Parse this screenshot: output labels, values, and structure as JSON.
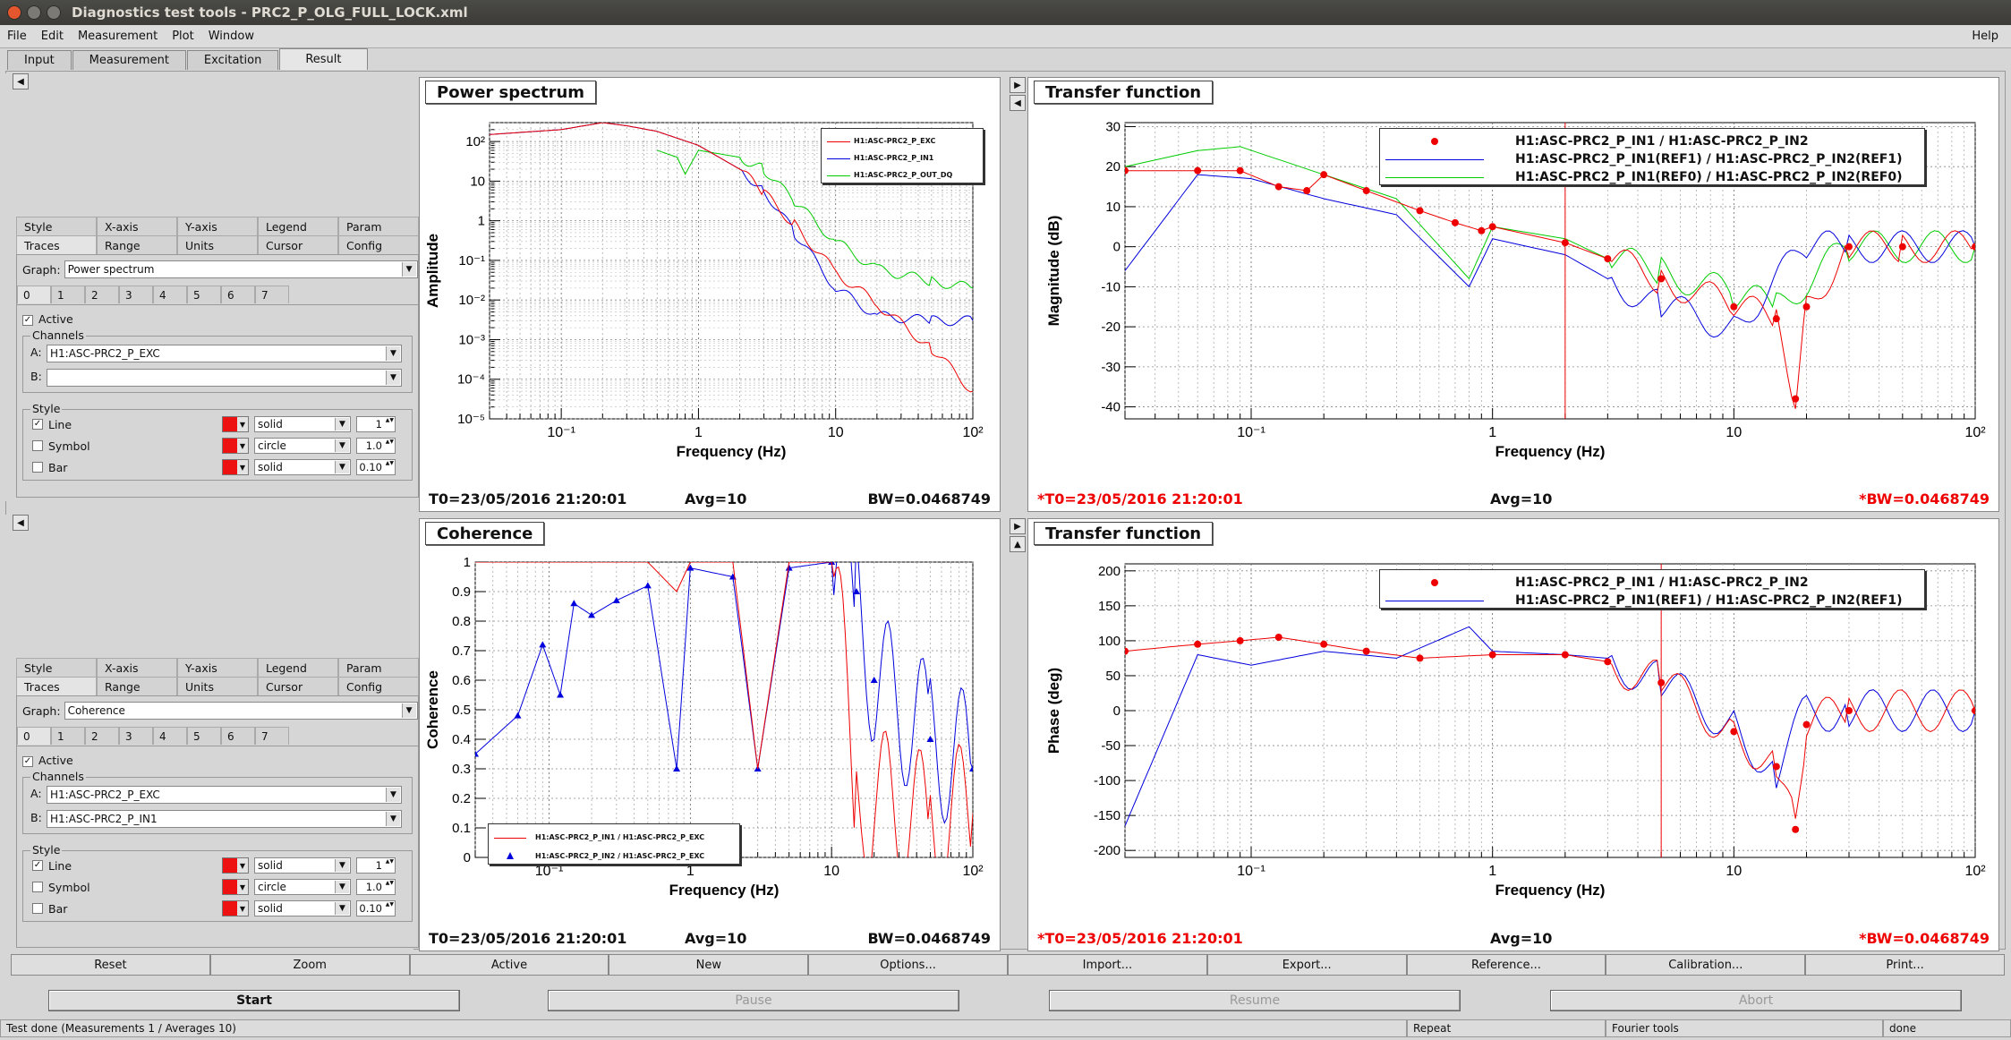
{
  "window": {
    "title": "Diagnostics test tools - PRC2_P_OLG_FULL_LOCK.xml"
  },
  "menu": {
    "items": [
      "File",
      "Edit",
      "Measurement",
      "Plot",
      "Window"
    ],
    "help": "Help"
  },
  "main_tabs": [
    "Input",
    "Measurement",
    "Excitation",
    "Result"
  ],
  "left_panels": [
    {
      "option_tabs_row1": [
        "Style",
        "X-axis",
        "Y-axis",
        "Legend",
        "Param"
      ],
      "option_tabs_row2": [
        "Traces",
        "Range",
        "Units",
        "Cursor",
        "Config"
      ],
      "graph_label": "Graph:",
      "graph_value": "Power spectrum",
      "trace_numbers": [
        "0",
        "1",
        "2",
        "3",
        "4",
        "5",
        "6",
        "7"
      ],
      "active_label": "Active",
      "channels_label": "Channels",
      "a_label": "A:",
      "a_value": "H1:ASC-PRC2_P_EXC",
      "b_label": "B:",
      "b_value": "",
      "style_label": "Style",
      "line_label": "Line",
      "line_style": "solid",
      "line_width": "1",
      "symbol_label": "Symbol",
      "symbol_style": "circle",
      "symbol_size": "1.0",
      "bar_label": "Bar",
      "bar_style": "solid",
      "bar_width": "0.10"
    },
    {
      "option_tabs_row1": [
        "Style",
        "X-axis",
        "Y-axis",
        "Legend",
        "Param"
      ],
      "option_tabs_row2": [
        "Traces",
        "Range",
        "Units",
        "Cursor",
        "Config"
      ],
      "graph_label": "Graph:",
      "graph_value": "Coherence",
      "trace_numbers": [
        "0",
        "1",
        "2",
        "3",
        "4",
        "5",
        "6",
        "7"
      ],
      "active_label": "Active",
      "channels_label": "Channels",
      "a_label": "A:",
      "a_value": "H1:ASC-PRC2_P_EXC",
      "b_label": "B:",
      "b_value": "H1:ASC-PRC2_P_IN1",
      "style_label": "Style",
      "line_label": "Line",
      "line_style": "solid",
      "line_width": "1",
      "symbol_label": "Symbol",
      "symbol_style": "circle",
      "symbol_size": "1.0",
      "bar_label": "Bar",
      "bar_style": "solid",
      "bar_width": "0.10"
    }
  ],
  "plots": {
    "power": {
      "title": "Power spectrum",
      "ylabel": "Amplitude",
      "xlabel": "Frequency (Hz)",
      "footer_t0": "T0=23/05/2016 21:20:01",
      "footer_avg": "Avg=10",
      "footer_bw": "BW=0.0468749",
      "legend": [
        "H1:ASC-PRC2_P_EXC",
        "H1:ASC-PRC2_P_IN1",
        "H1:ASC-PRC2_P_OUT_DQ"
      ]
    },
    "tf_mag": {
      "title": "Transfer function",
      "ylabel": "Magnitude (dB)",
      "xlabel": "Frequency (Hz)",
      "footer_t0": "*T0=23/05/2016 21:20:01",
      "footer_avg": "Avg=10",
      "footer_bw": "*BW=0.0468749",
      "legend": [
        "H1:ASC-PRC2_P_IN1 / H1:ASC-PRC2_P_IN2",
        "H1:ASC-PRC2_P_IN1(REF1) / H1:ASC-PRC2_P_IN2(REF1)",
        "H1:ASC-PRC2_P_IN1(REF0) / H1:ASC-PRC2_P_IN2(REF0)"
      ]
    },
    "coherence": {
      "title": "Coherence",
      "ylabel": "Coherence",
      "xlabel": "Frequency (Hz)",
      "footer_t0": "T0=23/05/2016 21:20:01",
      "footer_avg": "Avg=10",
      "footer_bw": "BW=0.0468749",
      "legend": [
        "H1:ASC-PRC2_P_IN1 / H1:ASC-PRC2_P_EXC",
        "H1:ASC-PRC2_P_IN2 / H1:ASC-PRC2_P_EXC"
      ]
    },
    "tf_phase": {
      "title": "Transfer function",
      "ylabel": "Phase (deg)",
      "xlabel": "Frequency (Hz)",
      "footer_t0": "*T0=23/05/2016 21:20:01",
      "footer_avg": "Avg=10",
      "footer_bw": "*BW=0.0468749",
      "legend": [
        "H1:ASC-PRC2_P_IN1 / H1:ASC-PRC2_P_IN2",
        "H1:ASC-PRC2_P_IN1(REF1) / H1:ASC-PRC2_P_IN2(REF1)"
      ]
    }
  },
  "chart_data": [
    {
      "type": "line",
      "title": "Power spectrum",
      "xlabel": "Frequency (Hz)",
      "ylabel": "Amplitude",
      "xscale": "log",
      "yscale": "log",
      "xlim": [
        0.03,
        100
      ],
      "ylim": [
        1e-05,
        300
      ],
      "x_tick_labels": [
        "10^-1",
        "1",
        "10",
        "10^2"
      ],
      "y_tick_labels": [
        "10^2",
        "10",
        "1",
        "10^-1",
        "10^-2",
        "10^-3",
        "10^-4",
        "10^-5"
      ],
      "grid": true,
      "legend_position": "top-right",
      "series": [
        {
          "name": "H1:ASC-PRC2_P_EXC",
          "color": "#ee0000",
          "x": [
            0.03,
            0.1,
            0.2,
            0.3,
            0.5,
            1,
            2,
            3,
            5,
            10,
            20,
            50,
            100
          ],
          "y": [
            150,
            200,
            300,
            250,
            180,
            80,
            20,
            5,
            0.8,
            0.05,
            0.008,
            0.0006,
            5e-05
          ]
        },
        {
          "name": "H1:ASC-PRC2_P_IN1",
          "color": "#0000dd",
          "x": [
            0.03,
            0.1,
            0.2,
            0.3,
            0.5,
            1,
            2,
            3,
            5,
            10,
            20,
            50,
            100
          ],
          "y": [
            150,
            200,
            300,
            250,
            180,
            80,
            20,
            6,
            0.5,
            0.02,
            0.004,
            0.003,
            0.003
          ]
        },
        {
          "name": "H1:ASC-PRC2_P_OUT_DQ",
          "color": "#00cc00",
          "x": [
            0.5,
            0.7,
            0.8,
            1,
            2,
            3,
            5,
            10,
            20,
            50,
            100
          ],
          "y": [
            60,
            40,
            15,
            60,
            40,
            20,
            3,
            0.3,
            0.06,
            0.03,
            0.02
          ]
        }
      ]
    },
    {
      "type": "line",
      "title": "Transfer function",
      "xlabel": "Frequency (Hz)",
      "ylabel": "Magnitude (dB)",
      "xscale": "log",
      "xlim": [
        0.03,
        100
      ],
      "ylim": [
        -43,
        31
      ],
      "x_tick_labels": [
        "10^-1",
        "1",
        "10",
        "10^2"
      ],
      "y_tick_labels": [
        "30",
        "20",
        "10",
        "0",
        "-10",
        "-20",
        "-30",
        "-40"
      ],
      "grid": true,
      "legend_position": "top-right",
      "series": [
        {
          "name": "H1:ASC-PRC2_P_IN1 / H1:ASC-PRC2_P_IN2",
          "color": "#ee0000",
          "marker": "circle",
          "x": [
            0.03,
            0.06,
            0.09,
            0.13,
            0.17,
            0.2,
            0.3,
            0.5,
            0.7,
            0.9,
            1,
            2,
            3,
            5,
            10,
            15,
            18,
            20,
            30,
            50,
            100
          ],
          "y": [
            19,
            19,
            19,
            15,
            14,
            18,
            14,
            9,
            6,
            4,
            5,
            1,
            -3,
            -8,
            -15,
            -18,
            -38,
            -15,
            0,
            0,
            0
          ]
        },
        {
          "name": "H1:ASC-PRC2_P_IN1(REF1) / H1:ASC-PRC2_P_IN2(REF1)",
          "color": "#0000dd",
          "x": [
            0.03,
            0.06,
            0.1,
            0.2,
            0.4,
            0.8,
            1,
            2,
            3,
            5,
            10,
            20,
            30,
            100
          ],
          "y": [
            -6,
            18,
            17,
            12,
            8,
            -10,
            2,
            -2,
            -8,
            -15,
            -20,
            0,
            0,
            0
          ]
        },
        {
          "name": "H1:ASC-PRC2_P_IN1(REF0) / H1:ASC-PRC2_P_IN2(REF0)",
          "color": "#00cc00",
          "x": [
            0.03,
            0.06,
            0.09,
            0.2,
            0.4,
            0.8,
            1,
            2,
            3,
            5,
            10,
            15,
            30,
            100
          ],
          "y": [
            20,
            24,
            25,
            18,
            12,
            -8,
            5,
            2,
            -3,
            -6,
            -12,
            -15,
            0,
            0
          ]
        }
      ]
    },
    {
      "type": "line",
      "title": "Coherence",
      "xlabel": "Frequency (Hz)",
      "ylabel": "Coherence",
      "xscale": "log",
      "xlim": [
        0.03,
        100
      ],
      "ylim": [
        0,
        1
      ],
      "x_tick_labels": [
        "10^-1",
        "1",
        "10",
        "10^2"
      ],
      "y_tick_labels": [
        "1",
        "0.9",
        "0.8",
        "0.7",
        "0.6",
        "0.5",
        "0.4",
        "0.3",
        "0.2",
        "0.1",
        "0"
      ],
      "grid": true,
      "legend_position": "bottom-left",
      "series": [
        {
          "name": "H1:ASC-PRC2_P_IN1 / H1:ASC-PRC2_P_EXC",
          "color": "#ee0000",
          "x": [
            0.03,
            0.1,
            0.5,
            0.8,
            1,
            2,
            3,
            5,
            10,
            15,
            20,
            50,
            100
          ],
          "y": [
            1,
            1,
            1,
            0.9,
            1,
            1,
            0.3,
            1,
            1,
            0.2,
            0.2,
            0.1,
            0.15
          ]
        },
        {
          "name": "H1:ASC-PRC2_P_IN2 / H1:ASC-PRC2_P_EXC",
          "color": "#0000dd",
          "marker": "triangle",
          "x": [
            0.03,
            0.06,
            0.09,
            0.12,
            0.15,
            0.2,
            0.3,
            0.5,
            0.8,
            1,
            2,
            3,
            5,
            10,
            15,
            20,
            50,
            100
          ],
          "y": [
            0.35,
            0.48,
            0.72,
            0.55,
            0.86,
            0.82,
            0.87,
            0.92,
            0.3,
            0.98,
            0.95,
            0.3,
            0.98,
            1,
            0.9,
            0.6,
            0.4,
            0.3
          ]
        }
      ]
    },
    {
      "type": "line",
      "title": "Transfer function",
      "xlabel": "Frequency (Hz)",
      "ylabel": "Phase (deg)",
      "xscale": "log",
      "xlim": [
        0.03,
        100
      ],
      "ylim": [
        -210,
        210
      ],
      "x_tick_labels": [
        "10^-1",
        "1",
        "10",
        "10^2"
      ],
      "y_tick_labels": [
        "200",
        "150",
        "100",
        "50",
        "0",
        "-50",
        "-100",
        "-150",
        "-200"
      ],
      "grid": true,
      "legend_position": "top-right",
      "series": [
        {
          "name": "H1:ASC-PRC2_P_IN1 / H1:ASC-PRC2_P_IN2",
          "color": "#ee0000",
          "marker": "circle",
          "x": [
            0.03,
            0.06,
            0.09,
            0.13,
            0.2,
            0.3,
            0.5,
            1,
            2,
            3,
            5,
            10,
            15,
            18,
            20,
            30,
            100
          ],
          "y": [
            85,
            95,
            100,
            105,
            95,
            85,
            75,
            80,
            80,
            70,
            40,
            -30,
            -80,
            -170,
            -20,
            0,
            0
          ]
        },
        {
          "name": "H1:ASC-PRC2_P_IN1(REF1) / H1:ASC-PRC2_P_IN2(REF1)",
          "color": "#0000dd",
          "x": [
            0.03,
            0.06,
            0.1,
            0.2,
            0.4,
            0.8,
            1,
            2,
            3,
            5,
            10,
            15,
            20,
            30,
            100
          ],
          "y": [
            -165,
            80,
            65,
            85,
            75,
            120,
            85,
            80,
            75,
            40,
            -20,
            -90,
            0,
            0,
            0
          ]
        }
      ]
    }
  ],
  "buttons_row1": [
    "Reset",
    "Zoom",
    "Active",
    "New",
    "Options...",
    "Import...",
    "Export...",
    "Reference...",
    "Calibration...",
    "Print..."
  ],
  "buttons_row2": [
    "Start",
    "Pause",
    "Resume",
    "Abort"
  ],
  "status": {
    "main": "Test done (Measurements 1 / Averages 10)",
    "repeat": "Repeat",
    "tools": "Fourier tools",
    "state": "done"
  },
  "colors": {
    "trace_red": "#ee0000",
    "trace_blue": "#0000dd",
    "trace_green": "#00cc00",
    "footer_red": "#ee0000"
  }
}
